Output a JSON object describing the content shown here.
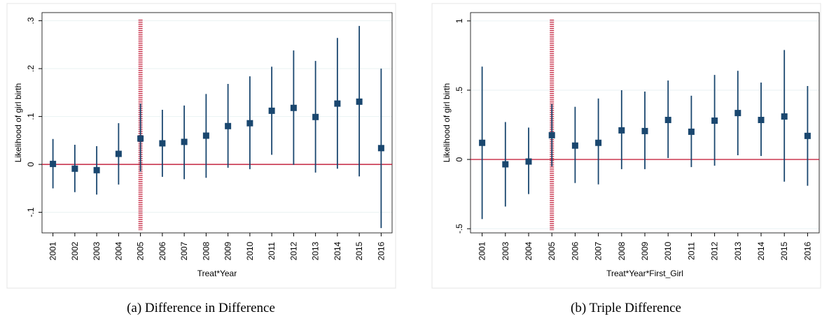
{
  "chart_data": [
    {
      "type": "point-range",
      "ylabel": "Likelihood of girl birth",
      "xlabel": "Treat*Year",
      "caption": "(a) Difference in Difference",
      "categories": [
        "2001",
        "2002",
        "2003",
        "2004",
        "2005",
        "2006",
        "2007",
        "2008",
        "2009",
        "2010",
        "2011",
        "2012",
        "2013",
        "2014",
        "2015",
        "2016"
      ],
      "values": [
        0.001,
        -0.009,
        -0.012,
        0.022,
        0.054,
        0.044,
        0.047,
        0.06,
        0.08,
        0.086,
        0.112,
        0.118,
        0.099,
        0.127,
        0.131,
        0.034
      ],
      "lower": [
        -0.05,
        -0.058,
        -0.063,
        -0.042,
        -0.015,
        -0.026,
        -0.031,
        -0.028,
        -0.007,
        -0.01,
        0.02,
        -0.001,
        -0.017,
        -0.009,
        -0.025,
        -0.133
      ],
      "upper": [
        0.053,
        0.041,
        0.038,
        0.086,
        0.127,
        0.114,
        0.123,
        0.147,
        0.168,
        0.184,
        0.204,
        0.238,
        0.216,
        0.264,
        0.289,
        0.2
      ],
      "color": "#1a476f",
      "ref_color": "#c0102e",
      "hline": 0,
      "vline_at": "2005",
      "ylim": [
        -0.143,
        0.317
      ],
      "yticks": [
        {
          "value": -0.1,
          "label": "-.1"
        },
        0,
        {
          "value": 0.1,
          "label": ".1"
        },
        {
          "value": 0.2,
          "label": ".2"
        },
        {
          "value": 0.3,
          "label": ".3"
        }
      ],
      "grid": true
    },
    {
      "type": "point-range",
      "ylabel": "Likelihood of girl birth",
      "xlabel": "Treat*Year*First_Girl",
      "caption": "(b) Triple Difference",
      "categories": [
        "2001",
        "2003",
        "2004",
        "2005",
        "2006",
        "2007",
        "2008",
        "2009",
        "2010",
        "2011",
        "2012",
        "2013",
        "2014",
        "2015",
        "2016"
      ],
      "values": [
        0.12,
        -0.035,
        -0.015,
        0.175,
        0.1,
        0.12,
        0.21,
        0.205,
        0.285,
        0.2,
        0.28,
        0.335,
        0.285,
        0.31,
        0.17
      ],
      "lower": [
        -0.43,
        -0.34,
        -0.25,
        -0.05,
        -0.17,
        -0.18,
        -0.07,
        -0.07,
        0.01,
        -0.055,
        -0.045,
        0.03,
        0.025,
        -0.16,
        -0.19
      ],
      "upper": [
        0.67,
        0.27,
        0.23,
        0.4,
        0.38,
        0.44,
        0.5,
        0.49,
        0.57,
        0.46,
        0.61,
        0.64,
        0.555,
        0.79,
        0.53
      ],
      "color": "#1a476f",
      "ref_color": "#c0102e",
      "hline": 0,
      "vline_at": "2005",
      "ylim": [
        -0.53,
        1.06
      ],
      "yticks": [
        {
          "value": -0.5,
          "label": "-.5"
        },
        0,
        {
          "value": 0.5,
          "label": ".5"
        },
        1
      ],
      "grid": true
    }
  ]
}
